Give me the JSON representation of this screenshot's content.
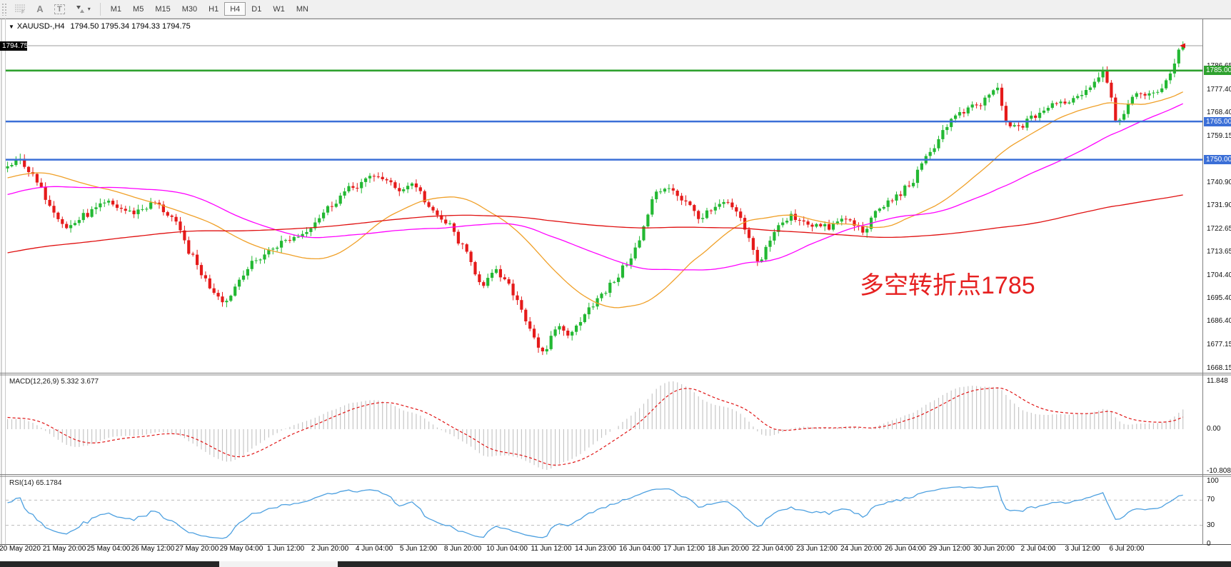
{
  "toolbar": {
    "grid_icon_letter": "F",
    "icons": [
      {
        "name": "grid-f-icon"
      },
      {
        "name": "label-a-icon",
        "glyph": "A"
      },
      {
        "name": "text-tool-icon",
        "glyph": "T"
      },
      {
        "name": "cursor-arrows-icon"
      },
      {
        "name": "dropdown-caret-icon",
        "glyph": "▾"
      }
    ],
    "timeframes": [
      "M1",
      "M5",
      "M15",
      "M30",
      "H1",
      "H4",
      "D1",
      "W1",
      "MN"
    ],
    "active_timeframe": "H4"
  },
  "header": {
    "dropdown_glyph": "▼",
    "symbol": "XAUUSD-,H4",
    "ohlc": "1794.50 1795.34 1794.33 1794.75"
  },
  "price_axis": {
    "current": {
      "label": "1794.75",
      "price": 1794.75,
      "bg": "#000000",
      "fg": "#ffffff"
    },
    "ticks": [
      {
        "label": "1786.65",
        "price": 1786.65
      },
      {
        "label": "1777.40",
        "price": 1777.4
      },
      {
        "label": "1768.40",
        "price": 1768.4
      },
      {
        "label": "1759.15",
        "price": 1759.15
      },
      {
        "label": "1740.90",
        "price": 1740.9
      },
      {
        "label": "1731.90",
        "price": 1731.9
      },
      {
        "label": "1722.65",
        "price": 1722.65
      },
      {
        "label": "1713.65",
        "price": 1713.65
      },
      {
        "label": "1704.40",
        "price": 1704.4
      },
      {
        "label": "1695.40",
        "price": 1695.4
      },
      {
        "label": "1686.40",
        "price": 1686.4
      },
      {
        "label": "1677.15",
        "price": 1677.15
      },
      {
        "label": "1668.15",
        "price": 1668.15
      }
    ]
  },
  "hlines": [
    {
      "label": "1785.00",
      "price": 1785.0,
      "color": "#2ea12e"
    },
    {
      "label": "1765.00",
      "price": 1765.0,
      "color": "#3b6fd7"
    },
    {
      "label": "1750.00",
      "price": 1750.0,
      "color": "#3b6fd7"
    }
  ],
  "annotation": {
    "text": "多空转折点1785",
    "color": "#e62020"
  },
  "time_axis": {
    "labels": [
      "20 May 2020",
      "21 May 20:00",
      "25 May 04:00",
      "26 May 12:00",
      "27 May 20:00",
      "29 May 04:00",
      "1 Jun 12:00",
      "2 Jun 20:00",
      "4 Jun 04:00",
      "5 Jun 12:00",
      "8 Jun 20:00",
      "10 Jun 04:00",
      "11 Jun 12:00",
      "14 Jun 23:00",
      "16 Jun 04:00",
      "17 Jun 12:00",
      "18 Jun 20:00",
      "22 Jun 04:00",
      "23 Jun 12:00",
      "24 Jun 20:00",
      "26 Jun 04:00",
      "29 Jun 12:00",
      "30 Jun 20:00",
      "2 Jul 04:00",
      "3 Jul 12:00",
      "6 Jul 20:00"
    ]
  },
  "macd_pane": {
    "label": "MACD(12,26,9) 5.332 3.677",
    "axis_ticks": [
      "11.848",
      "0.00",
      "-10.808"
    ],
    "histogram_color": "#c6c6c6",
    "signal_color": "#e01414"
  },
  "rsi_pane": {
    "label": "RSI(14) 65.1784",
    "axis_ticks": [
      "100",
      "70",
      "30",
      "0"
    ],
    "levels": [
      70,
      30
    ],
    "line_color": "#4da0e0"
  },
  "chart_data": {
    "type": "candlestick",
    "symbol": "XAUUSD",
    "timeframe": "H4",
    "last_ohlc": {
      "open": 1794.5,
      "high": 1795.34,
      "low": 1794.33,
      "close": 1794.75
    },
    "price_range": [
      1666.9,
      1799.8
    ],
    "visible_candles": 280,
    "leadin_candles": 200,
    "bull_color": "#23b833",
    "bear_color": "#e51a1a",
    "current_price_line_color": "#9e9e9e",
    "key_levels": [
      1785,
      1765,
      1750
    ],
    "moving_averages": [
      {
        "name": "fast-ma",
        "period": 34,
        "color": "#f0a028"
      },
      {
        "name": "mid-ma",
        "period": 62,
        "color": "#ff00ff"
      },
      {
        "name": "slow-ma",
        "period": 200,
        "color": "#e01010"
      }
    ],
    "indicators": {
      "macd": {
        "fast": 12,
        "slow": 26,
        "signal": 9,
        "macd_value": 5.332,
        "signal_value": 3.677
      },
      "rsi": {
        "period": 14,
        "value": 65.1784
      }
    },
    "close_path_anchors": [
      [
        -0.72,
        1688
      ],
      [
        -0.55,
        1697
      ],
      [
        -0.4,
        1706
      ],
      [
        -0.28,
        1716
      ],
      [
        -0.18,
        1727
      ],
      [
        -0.1,
        1738
      ],
      [
        -0.04,
        1746
      ],
      [
        0,
        1747
      ],
      [
        0.012,
        1750
      ],
      [
        0.03,
        1737
      ],
      [
        0.05,
        1723
      ],
      [
        0.065,
        1728
      ],
      [
        0.085,
        1733
      ],
      [
        0.105,
        1729
      ],
      [
        0.125,
        1733
      ],
      [
        0.14,
        1727
      ],
      [
        0.155,
        1713
      ],
      [
        0.17,
        1701
      ],
      [
        0.185,
        1694
      ],
      [
        0.2,
        1706
      ],
      [
        0.215,
        1712
      ],
      [
        0.23,
        1717
      ],
      [
        0.25,
        1721
      ],
      [
        0.265,
        1728
      ],
      [
        0.285,
        1737
      ],
      [
        0.3,
        1741
      ],
      [
        0.315,
        1744
      ],
      [
        0.33,
        1738
      ],
      [
        0.345,
        1741
      ],
      [
        0.36,
        1729
      ],
      [
        0.375,
        1724
      ],
      [
        0.39,
        1712
      ],
      [
        0.402,
        1701
      ],
      [
        0.415,
        1706
      ],
      [
        0.43,
        1697
      ],
      [
        0.443,
        1684
      ],
      [
        0.455,
        1672
      ],
      [
        0.465,
        1685
      ],
      [
        0.478,
        1681
      ],
      [
        0.49,
        1691
      ],
      [
        0.505,
        1697
      ],
      [
        0.52,
        1706
      ],
      [
        0.535,
        1717
      ],
      [
        0.548,
        1736
      ],
      [
        0.56,
        1740
      ],
      [
        0.575,
        1733
      ],
      [
        0.588,
        1727
      ],
      [
        0.6,
        1731
      ],
      [
        0.612,
        1733
      ],
      [
        0.625,
        1723
      ],
      [
        0.636,
        1709
      ],
      [
        0.65,
        1722
      ],
      [
        0.665,
        1728
      ],
      [
        0.68,
        1725
      ],
      [
        0.695,
        1723
      ],
      [
        0.71,
        1727
      ],
      [
        0.725,
        1722
      ],
      [
        0.74,
        1731
      ],
      [
        0.755,
        1736
      ],
      [
        0.768,
        1742
      ],
      [
        0.782,
        1753
      ],
      [
        0.798,
        1765
      ],
      [
        0.812,
        1769
      ],
      [
        0.826,
        1772
      ],
      [
        0.838,
        1779
      ],
      [
        0.848,
        1762
      ],
      [
        0.862,
        1764
      ],
      [
        0.876,
        1769
      ],
      [
        0.89,
        1772
      ],
      [
        0.904,
        1774
      ],
      [
        0.918,
        1779
      ],
      [
        0.93,
        1786
      ],
      [
        0.94,
        1765
      ],
      [
        0.951,
        1772
      ],
      [
        0.962,
        1777
      ],
      [
        0.972,
        1775
      ],
      [
        0.982,
        1781
      ],
      [
        0.992,
        1791
      ],
      [
        1,
        1794.75
      ]
    ]
  }
}
